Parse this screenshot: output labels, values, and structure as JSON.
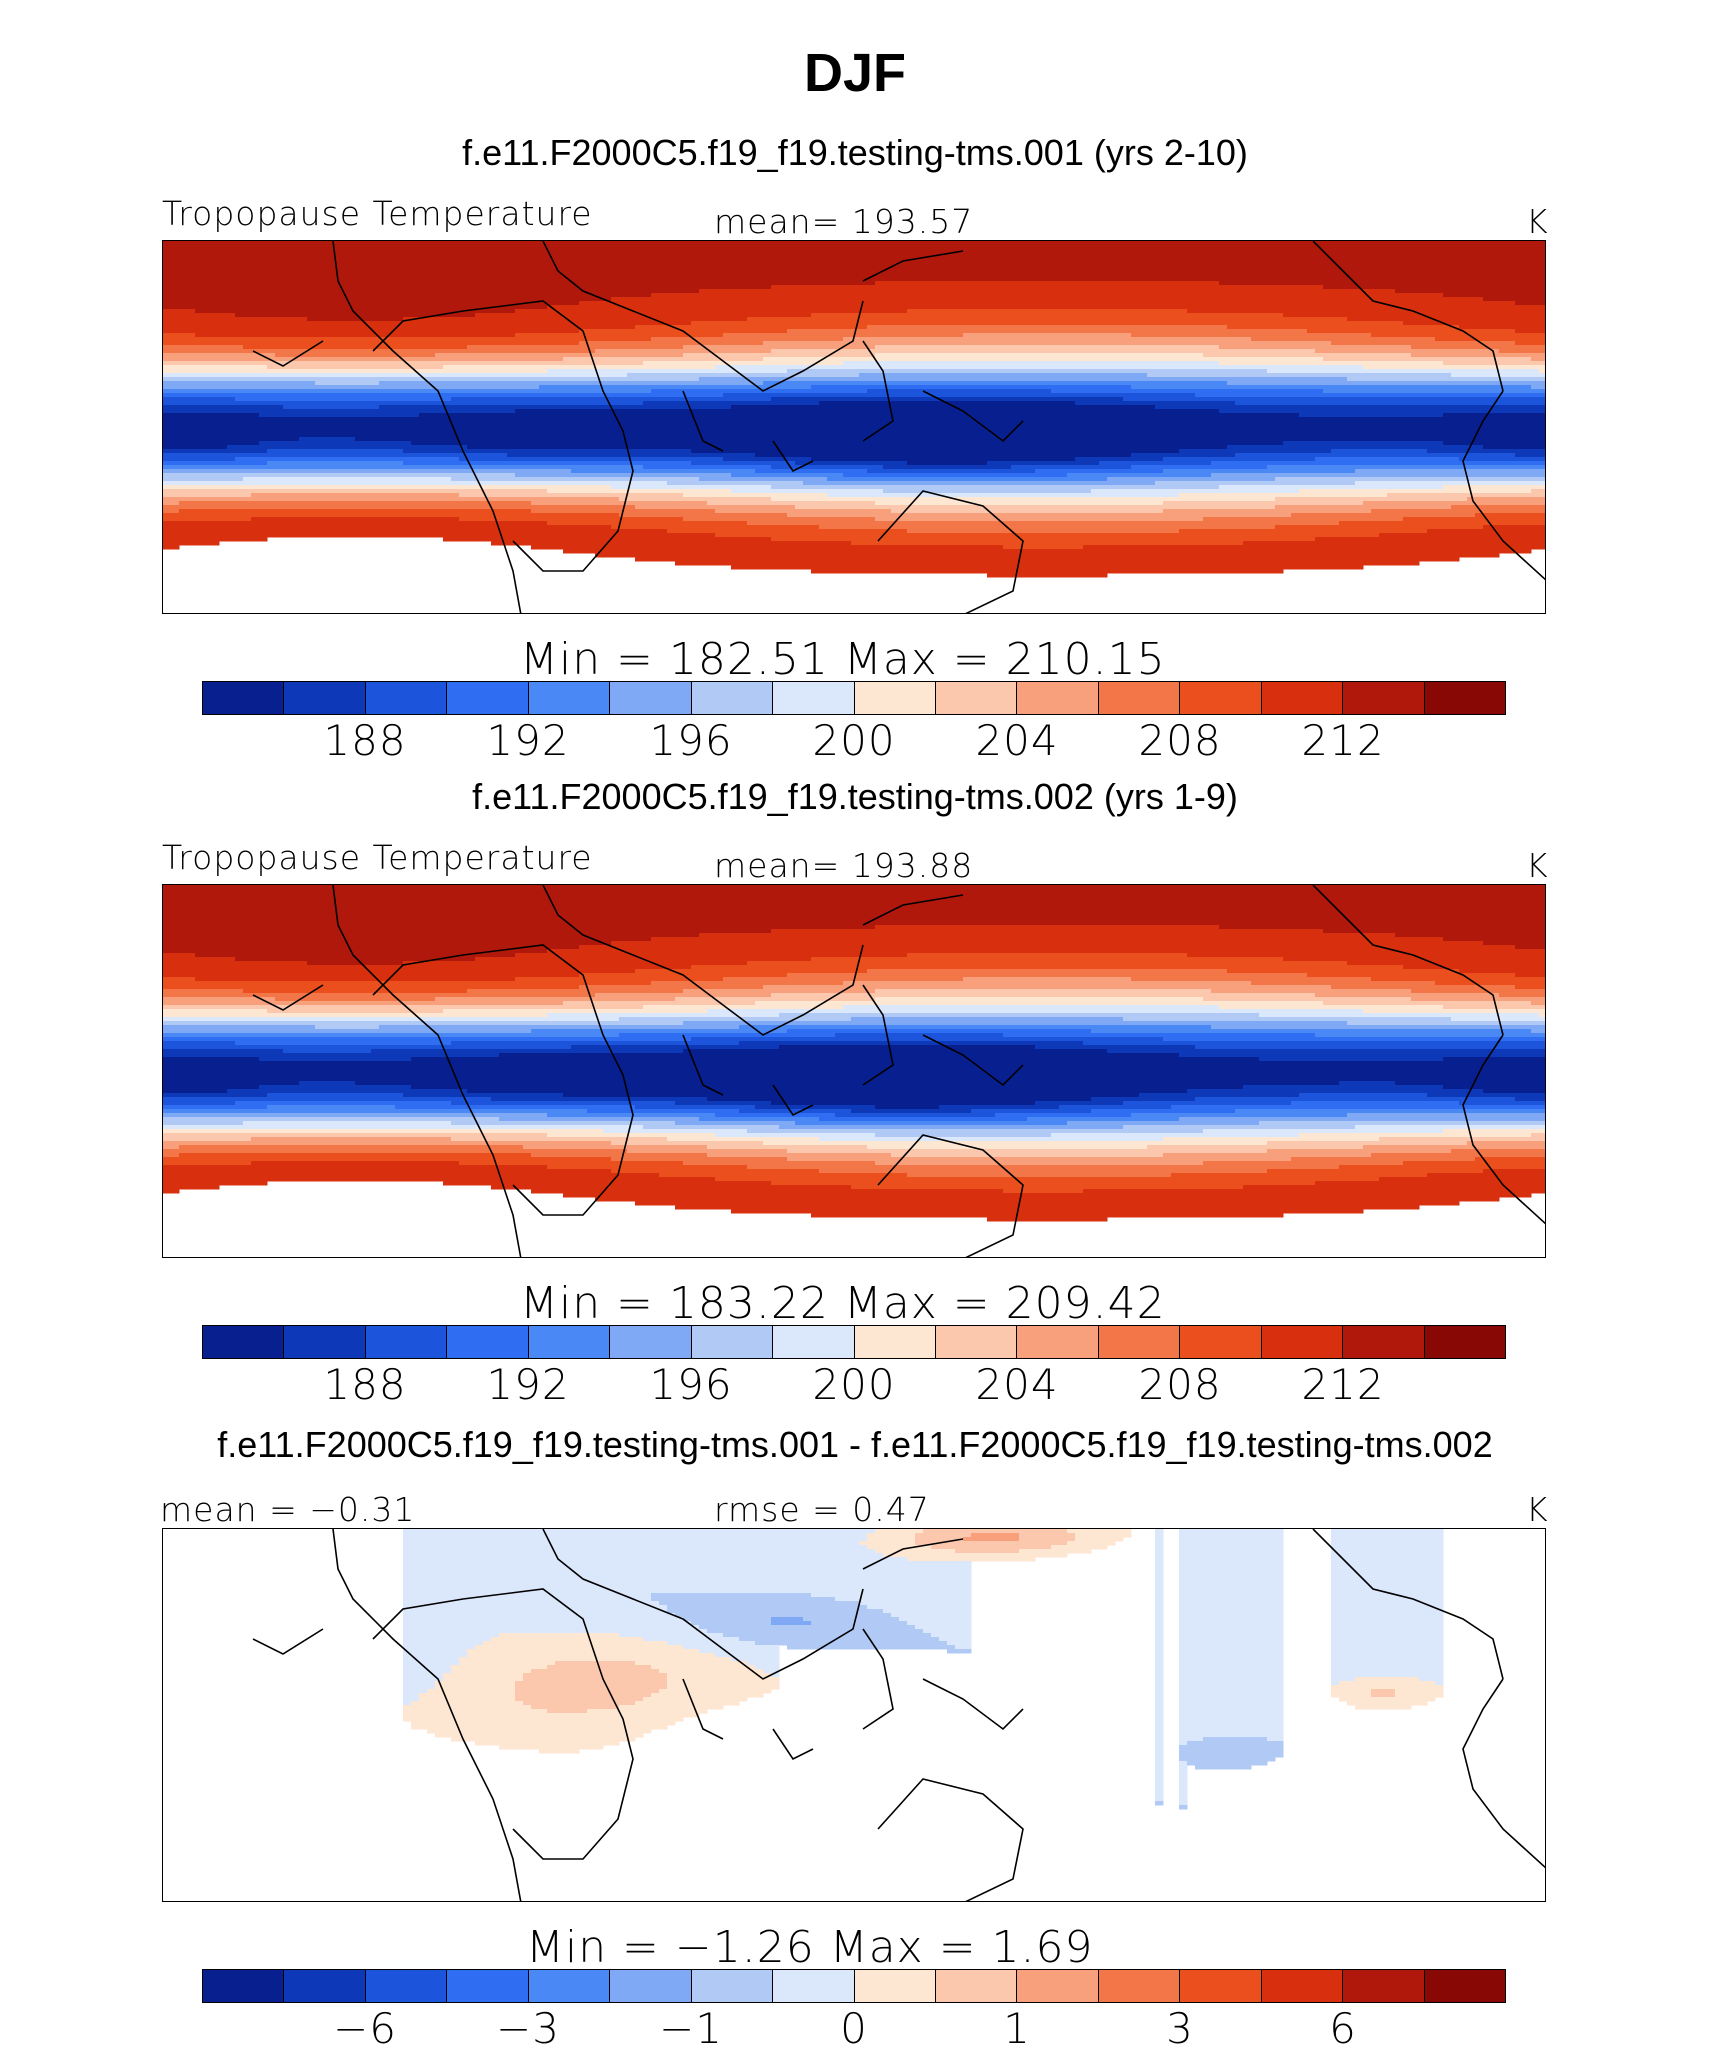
{
  "title": "DJF",
  "units": "K",
  "colors": {
    "levels": [
      "#081f8f",
      "#0d39b8",
      "#1c55dc",
      "#2f6df2",
      "#4a88f5",
      "#7fa8f5",
      "#b0c9f5",
      "#dbe7fa",
      "#fde6d2",
      "#fbc7ad",
      "#f7a07b",
      "#f37648",
      "#eb4f1e",
      "#d8300e",
      "#b0180b",
      "#870805"
    ]
  },
  "chart_data": [
    {
      "type": "heatmap",
      "panel_title": "f.e11.F2000C5.f19_f19.testing-tms.001 (yrs 2-10)",
      "variable": "Tropopause Temperature",
      "left_label": "Tropopause Temperature",
      "center_label": "mean=  193.57",
      "units": "K",
      "mean": 193.57,
      "min": 182.51,
      "max": 210.15,
      "minmax_label": "Min  =  182.51  Max  =  210.15",
      "colorbar_ticks": [
        "188",
        "192",
        "196",
        "200",
        "204",
        "208",
        "212"
      ],
      "tick_boundaries": [
        2,
        4,
        6,
        8,
        10,
        12,
        14
      ]
    },
    {
      "type": "heatmap",
      "panel_title": "f.e11.F2000C5.f19_f19.testing-tms.002 (yrs 1-9)",
      "variable": "Tropopause Temperature",
      "left_label": "Tropopause Temperature",
      "center_label": "mean=  193.88",
      "units": "K",
      "mean": 193.88,
      "min": 183.22,
      "max": 209.42,
      "minmax_label": "Min  =  183.22  Max  =  209.42",
      "colorbar_ticks": [
        "188",
        "192",
        "196",
        "200",
        "204",
        "208",
        "212"
      ],
      "tick_boundaries": [
        2,
        4,
        6,
        8,
        10,
        12,
        14
      ]
    },
    {
      "type": "heatmap",
      "panel_title": "f.e11.F2000C5.f19_f19.testing-tms.001 - f.e11.F2000C5.f19_f19.testing-tms.002",
      "left_label": "mean =    −0.31",
      "center_label": "rmse  =      0.47",
      "units": "K",
      "mean": -0.31,
      "rmse": 0.47,
      "min": -1.26,
      "max": 1.69,
      "minmax_label": "Min  =    −1.26  Max  =      1.69",
      "colorbar_ticks": [
        "−6",
        "−3",
        "−1",
        "0",
        "1",
        "3",
        "6"
      ],
      "tick_boundaries": [
        2,
        4,
        6,
        8,
        10,
        12,
        14
      ]
    }
  ]
}
